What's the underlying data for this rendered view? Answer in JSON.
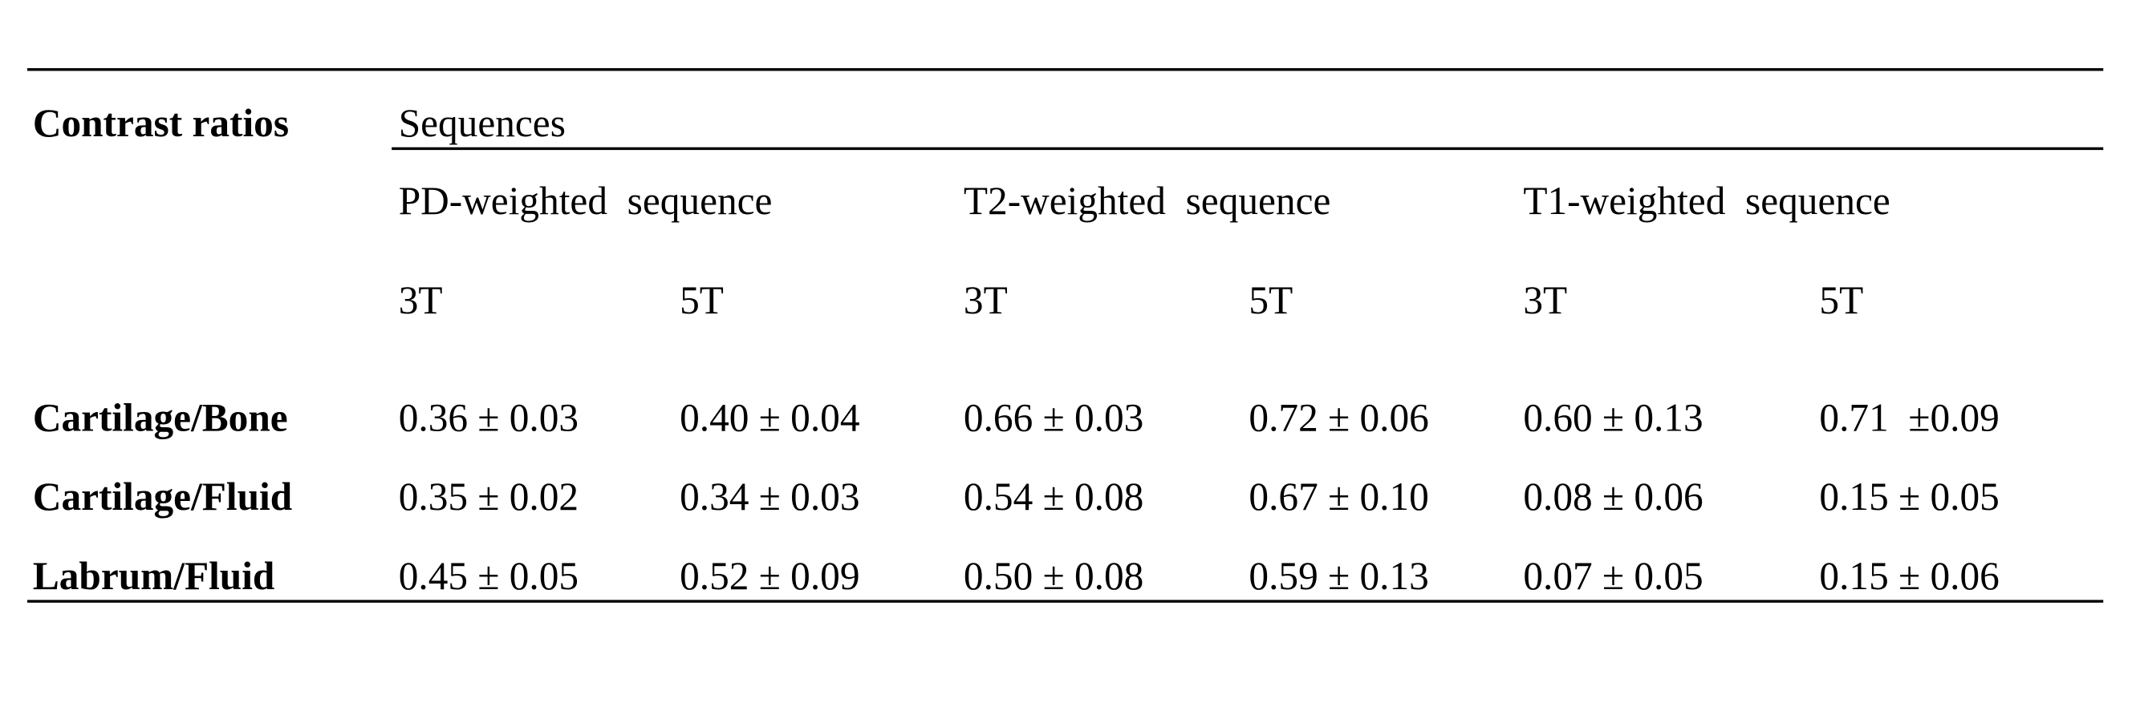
{
  "table": {
    "stub_header": "Contrast ratios",
    "group_header": "Sequences",
    "sequences": [
      "PD-weighted  sequence",
      "T2-weighted  sequence",
      "T1-weighted  sequence"
    ],
    "field_strengths": [
      "3T",
      "5T",
      "3T",
      "5T",
      "3T",
      "5T"
    ],
    "rows": [
      {
        "label": "Cartilage/Bone",
        "values": [
          "0.36 ± 0.03",
          "0.40 ± 0.04",
          "0.66 ± 0.03",
          "0.72 ± 0.06",
          "0.60 ± 0.13",
          "0.71  ±0.09"
        ]
      },
      {
        "label": "Cartilage/Fluid",
        "values": [
          "0.35 ± 0.02",
          "0.34 ± 0.03",
          "0.54 ± 0.08",
          "0.67 ± 0.10",
          "0.08 ± 0.06",
          "0.15 ± 0.05"
        ]
      },
      {
        "label": "Labrum/Fluid",
        "values": [
          "0.45 ± 0.05",
          "0.52 ± 0.09",
          "0.50 ± 0.08",
          "0.59 ± 0.13",
          "0.07 ± 0.05",
          "0.15 ± 0.06"
        ]
      }
    ]
  }
}
